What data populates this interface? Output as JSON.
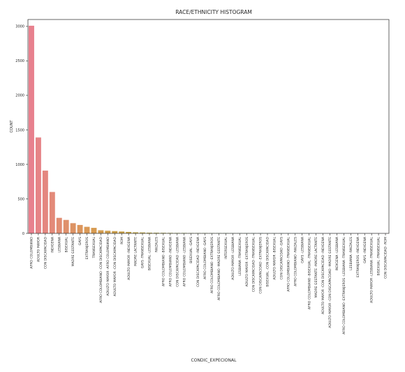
{
  "chart_data": {
    "type": "bar",
    "title": "RACE/ETHNICITY HISTOGRAM",
    "xlabel": "CONDIC_EXPECIONAL",
    "ylabel": "COUNT",
    "ylim": [
      0,
      3100
    ],
    "yticks": [
      0,
      500,
      1000,
      1500,
      2000,
      2500,
      3000
    ],
    "grid": false,
    "legend": "none",
    "colors": {
      "start": "#E8818E",
      "mid": "#D99A52",
      "yellow": "#B5A33C",
      "green": "#7FB04A",
      "teal": "#3FA58E",
      "blue": "#56A6D4",
      "end": "#EE8FE0"
    },
    "categories": [
      "AFRO COLOMBIANO",
      "ADULTO MAYOR",
      "CON DISCAPACIDAD",
      "INDIGENA",
      "LESBIANA",
      "BISEXUAL",
      "MADRE GESTANTE",
      "GAYS",
      "EXTRANJEROS",
      "TRANSEXUAL",
      "AFRO COLOMBIANO -CON DISCAPACIDAD",
      "ADULTO MAYOR -AFRO COLOMBIANO",
      "ADULTO MAYOR -CON DISCAPACIDAD",
      "ROM",
      "ADULTO MAYOR -INDIGENA",
      "MADRE LACTANTE",
      "GAYS -TRANSEXUAL",
      "BISEXUAL -LESBIANA",
      "RAIZALES",
      "AFRO COLOMBIANO -BISEXUAL",
      "AFRO COLOMBIANO -INDIGENA",
      "CON DISCAPACIDAD -LESBIANA",
      "AFRO COLOMBIANO -LESBIANA",
      "BISEXUAL -GAYS",
      "CON DISCAPACIDAD -INDIGENA",
      "AFRO COLOMBIANO -GAYS",
      "AFRO COLOMBIANO -EXTRANJEROS",
      "AFRO COLOMBIANO -MADRE GESTANTE",
      "INTERSEXUAL",
      "ADULTO MAYOR -LESBIANA",
      "LESBIANA -TRANSEXUAL",
      "ADULTO MAYOR -EXTRANJEROS",
      "CON DISCAPACIDAD -TRANSEXUAL",
      "CON DISCAPACIDAD -EXTRANJEROS",
      "BISEXUAL -CON DISCAPACIDAD",
      "ADULTO MAYOR -BISEXUAL",
      "CON DISCAPACIDAD -GAYS",
      "AFRO COLOMBIANO -TRANSEXUAL",
      "AFRO COLOMBIANO -RAIZALES",
      "GAYS -LESBIANA",
      "AFRO COLOMBIANO -BISEXUAL -TRANSEXUAL",
      "MADRE GESTANTE -MADRE LACTANTE",
      "ADULTO MAYOR -CON DISCAPACIDAD -INDIGENA",
      "ADULTO MAYOR -CON DISCAPACIDAD -MADRE GESTANTE",
      "INDIGENA -LESBIANA",
      "AFRO COLOMBIANO -EXTRANJEROS -LESBIANA -TRANSEXUAL",
      "LESBIANA -RAIZALES",
      "EXTRANJEROS -INDIGENA",
      "GAYS -INDIGENA",
      "ADULTO MAYOR -LESBIANA -TRANSEXUAL",
      "BISEXUAL -TRANSEXUAL",
      "CON DISCAPACIDAD -ROM"
    ],
    "values": [
      3010,
      1390,
      910,
      600,
      225,
      195,
      148,
      122,
      95,
      80,
      45,
      38,
      33,
      27,
      21,
      15,
      13,
      10,
      9,
      8,
      7,
      6,
      6,
      5,
      5,
      5,
      4,
      4,
      4,
      3,
      3,
      3,
      3,
      3,
      2,
      2,
      2,
      2,
      2,
      2,
      2,
      1,
      1,
      1,
      1,
      1,
      1,
      1,
      1,
      1,
      1,
      1
    ]
  }
}
